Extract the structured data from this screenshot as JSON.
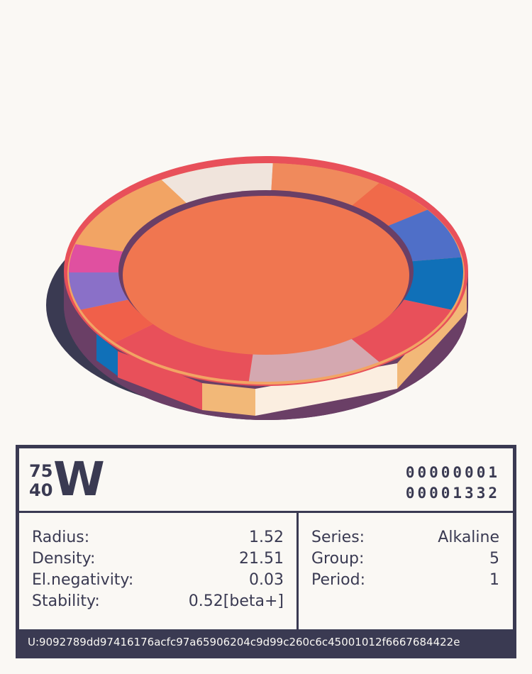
{
  "element": {
    "mass_number": "75",
    "atomic_number": "40",
    "symbol": "W",
    "binary_line_1": "00000001",
    "binary_line_2": "00001332"
  },
  "properties_left": [
    {
      "label": "Radius:",
      "value": "1.52"
    },
    {
      "label": "Density:",
      "value": "21.51"
    },
    {
      "label": "El.negativity:",
      "value": "0.03"
    },
    {
      "label": "Stability:",
      "value": "0.52[beta+]"
    }
  ],
  "properties_right": [
    {
      "label": "Series:",
      "value": "Alkaline"
    },
    {
      "label": "Group:",
      "value": "5"
    },
    {
      "label": "Period:",
      "value": "1"
    }
  ],
  "footer": {
    "uid": "U:9092789dd97416176acfc97a65906204c9d99c260c6c45001012f6667684422e"
  },
  "colors": {
    "ink": "#3a3a52",
    "paper": "#faf8f4",
    "core": "#f07650",
    "rim_edge": "#e8505a",
    "ring_shadow": "#3a3a52"
  },
  "ring_segments": [
    {
      "color": "#f2a464"
    },
    {
      "color": "#f0e4dc"
    },
    {
      "color": "#f08a5c"
    },
    {
      "color": "#f06a4a"
    },
    {
      "color": "#4f6fc8"
    },
    {
      "color": "#1070b8"
    },
    {
      "color": "#e8505a"
    },
    {
      "color": "#d4a8b0"
    },
    {
      "color": "#e8505a"
    },
    {
      "color": "#f0604a"
    },
    {
      "color": "#8a70c8"
    },
    {
      "color": "#e050a0"
    }
  ]
}
